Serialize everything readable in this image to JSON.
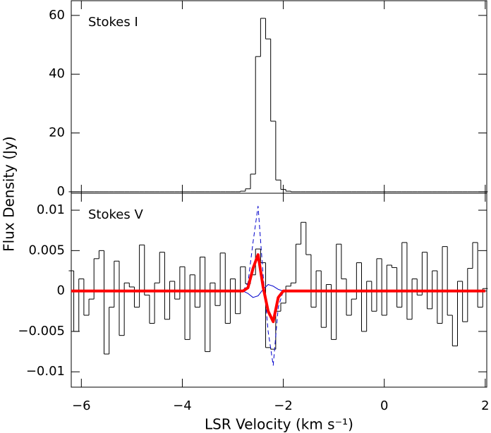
{
  "chart_data": [
    {
      "type": "line",
      "annotation": "Stokes I",
      "ylabel": "Flux Density (Jy)",
      "x": [
        -6.2,
        -6.1,
        -6.0,
        -5.9,
        -5.8,
        -5.7,
        -5.6,
        -5.5,
        -5.4,
        -5.3,
        -5.2,
        -5.1,
        -5.0,
        -4.9,
        -4.8,
        -4.7,
        -4.6,
        -4.5,
        -4.4,
        -4.3,
        -4.2,
        -4.1,
        -4.0,
        -3.9,
        -3.8,
        -3.7,
        -3.6,
        -3.5,
        -3.4,
        -3.3,
        -3.2,
        -3.1,
        -3.0,
        -2.9,
        -2.8,
        -2.7,
        -2.6,
        -2.5,
        -2.4,
        -2.3,
        -2.2,
        -2.1,
        -2.0,
        -1.9,
        -1.8,
        -1.7,
        -1.6,
        -1.5,
        -1.4,
        -1.3,
        -1.2,
        -1.1,
        -1.0,
        -0.9,
        -0.8,
        -0.7,
        -0.6,
        -0.5,
        -0.4,
        -0.3,
        -0.2,
        -0.1,
        0.0,
        0.1,
        0.2,
        0.3,
        0.4,
        0.5,
        0.6,
        0.7,
        0.8,
        0.9,
        1.0,
        1.1,
        1.2,
        1.3,
        1.4,
        1.5,
        1.6,
        1.7,
        1.8,
        1.9,
        2.0
      ],
      "series": [
        {
          "color": "#000000",
          "step": true,
          "line_width": 1,
          "values": [
            0,
            0,
            0,
            0,
            0,
            0,
            0,
            0,
            0,
            0,
            0,
            0,
            0,
            0,
            0,
            0,
            0,
            0,
            0,
            0,
            0,
            0,
            0,
            0,
            0,
            0,
            0,
            0,
            0,
            0,
            0,
            0,
            0,
            0,
            0.2,
            1,
            6,
            46,
            59,
            52,
            24,
            4,
            0.8,
            0.2,
            0,
            0,
            0,
            0,
            0,
            0,
            0,
            0,
            0,
            0,
            0,
            0,
            0,
            0,
            0,
            0,
            0,
            0,
            0,
            0,
            0,
            0,
            0,
            0,
            0,
            0,
            0,
            0,
            0,
            0,
            0,
            0,
            0,
            0,
            0,
            0,
            0,
            0,
            0
          ]
        }
      ],
      "xlim": [
        -6.2,
        2.03
      ],
      "xticks": [
        -6,
        -4,
        -2,
        0,
        2
      ],
      "ylim": [
        -0.5,
        65
      ],
      "yticks": [
        0,
        20,
        40,
        60
      ]
    },
    {
      "type": "line",
      "annotation": "Stokes V",
      "xlabel": "LSR Velocity (km s⁻¹)",
      "x": [
        -6.2,
        -6.1,
        -6.0,
        -5.9,
        -5.8,
        -5.7,
        -5.6,
        -5.5,
        -5.4,
        -5.3,
        -5.2,
        -5.1,
        -5.0,
        -4.9,
        -4.8,
        -4.7,
        -4.6,
        -4.5,
        -4.4,
        -4.3,
        -4.2,
        -4.1,
        -4.0,
        -3.9,
        -3.8,
        -3.7,
        -3.6,
        -3.5,
        -3.4,
        -3.3,
        -3.2,
        -3.1,
        -3.0,
        -2.9,
        -2.8,
        -2.7,
        -2.6,
        -2.5,
        -2.4,
        -2.3,
        -2.2,
        -2.1,
        -2.0,
        -1.9,
        -1.8,
        -1.7,
        -1.6,
        -1.5,
        -1.4,
        -1.3,
        -1.2,
        -1.1,
        -1.0,
        -0.9,
        -0.8,
        -0.7,
        -0.6,
        -0.5,
        -0.4,
        -0.3,
        -0.2,
        -0.1,
        0.0,
        0.1,
        0.2,
        0.3,
        0.4,
        0.5,
        0.6,
        0.7,
        0.8,
        0.9,
        1.0,
        1.1,
        1.2,
        1.3,
        1.4,
        1.5,
        1.6,
        1.7,
        1.8,
        1.9,
        2.0
      ],
      "series": [
        {
          "color": "#000000",
          "step": true,
          "line_width": 1,
          "values": [
            0.0025,
            -0.005,
            0.0015,
            -0.003,
            -0.001,
            0.004,
            0.005,
            -0.0078,
            -0.002,
            0.0037,
            -0.0055,
            0.001,
            0.0005,
            -0.002,
            0.0057,
            -0.0005,
            -0.004,
            0.001,
            0.0048,
            -0.0035,
            0.0012,
            -0.001,
            0.003,
            -0.006,
            0.002,
            -0.002,
            0.0042,
            -0.0075,
            0.001,
            -0.0018,
            0.0047,
            -0.004,
            0.0015,
            -0.0028,
            0.003,
            0.0009,
            0.002,
            0.0052,
            0.0035,
            -0.007,
            -0.0072,
            -0.0025,
            -0.0015,
            0.0006,
            0.001,
            0.0058,
            0.0085,
            0.0045,
            -0.002,
            0.0025,
            -0.0045,
            0.0008,
            -0.006,
            0.0058,
            0.0015,
            -0.003,
            -0.001,
            0.0035,
            -0.005,
            0.0012,
            -0.0025,
            0.004,
            -0.003,
            0.0032,
            0.0029,
            -0.002,
            0.006,
            -0.0035,
            0.0015,
            -0.0005,
            0.0048,
            -0.0022,
            0.0025,
            -0.004,
            0.0055,
            -0.003,
            -0.0068,
            0.0012,
            -0.0038,
            0.0028,
            0.006,
            -0.002,
            0.0003
          ]
        },
        {
          "color": "#0000cc",
          "dashed": true,
          "line_width": 1,
          "x": [
            -2.8,
            -2.7,
            -2.6,
            -2.5,
            -2.4,
            -2.3,
            -2.2,
            -2.1,
            -2.0
          ],
          "values": [
            0,
            0.001,
            0.006,
            0.0105,
            0.002,
            -0.005,
            -0.0092,
            -0.002,
            0
          ]
        },
        {
          "color": "#0000cc",
          "line_width": 1,
          "x": [
            -2.8,
            -2.7,
            -2.6,
            -2.5,
            -2.4,
            -2.3,
            -2.2,
            -2.1,
            -2.0
          ],
          "values": [
            0,
            -0.0003,
            -0.0008,
            -0.0006,
            0.0002,
            0.0008,
            0.0006,
            0.0002,
            0
          ]
        },
        {
          "color": "#ff0000",
          "line_width": 4,
          "values": [
            0,
            0,
            0,
            0,
            0,
            0,
            0,
            0,
            0,
            0,
            0,
            0,
            0,
            0,
            0,
            0,
            0,
            0,
            0,
            0,
            0,
            0,
            0,
            0,
            0,
            0,
            0,
            0,
            0,
            0,
            0,
            0,
            0,
            0,
            0,
            0.0004,
            0.0028,
            0.0045,
            0.0005,
            -0.0025,
            -0.0038,
            -0.0008,
            0,
            0,
            0,
            0,
            0,
            0,
            0,
            0,
            0,
            0,
            0,
            0,
            0,
            0,
            0,
            0,
            0,
            0,
            0,
            0,
            0,
            0,
            0,
            0,
            0,
            0,
            0,
            0,
            0,
            0,
            0,
            0,
            0,
            0,
            0,
            0,
            0,
            0,
            0,
            0,
            0
          ]
        }
      ],
      "xlim": [
        -6.2,
        2.03
      ],
      "xticks": [
        {
          "value": -6,
          "label": "−6"
        },
        {
          "value": -4,
          "label": "−4"
        },
        {
          "value": -2,
          "label": "−2"
        },
        0,
        2
      ],
      "ylim": [
        -0.0119,
        0.0121
      ],
      "yticks": [
        {
          "value": -0.01,
          "label": "−0.01"
        },
        {
          "value": -0.005,
          "label": "−0.005"
        },
        0,
        0.005,
        0.01
      ]
    }
  ]
}
